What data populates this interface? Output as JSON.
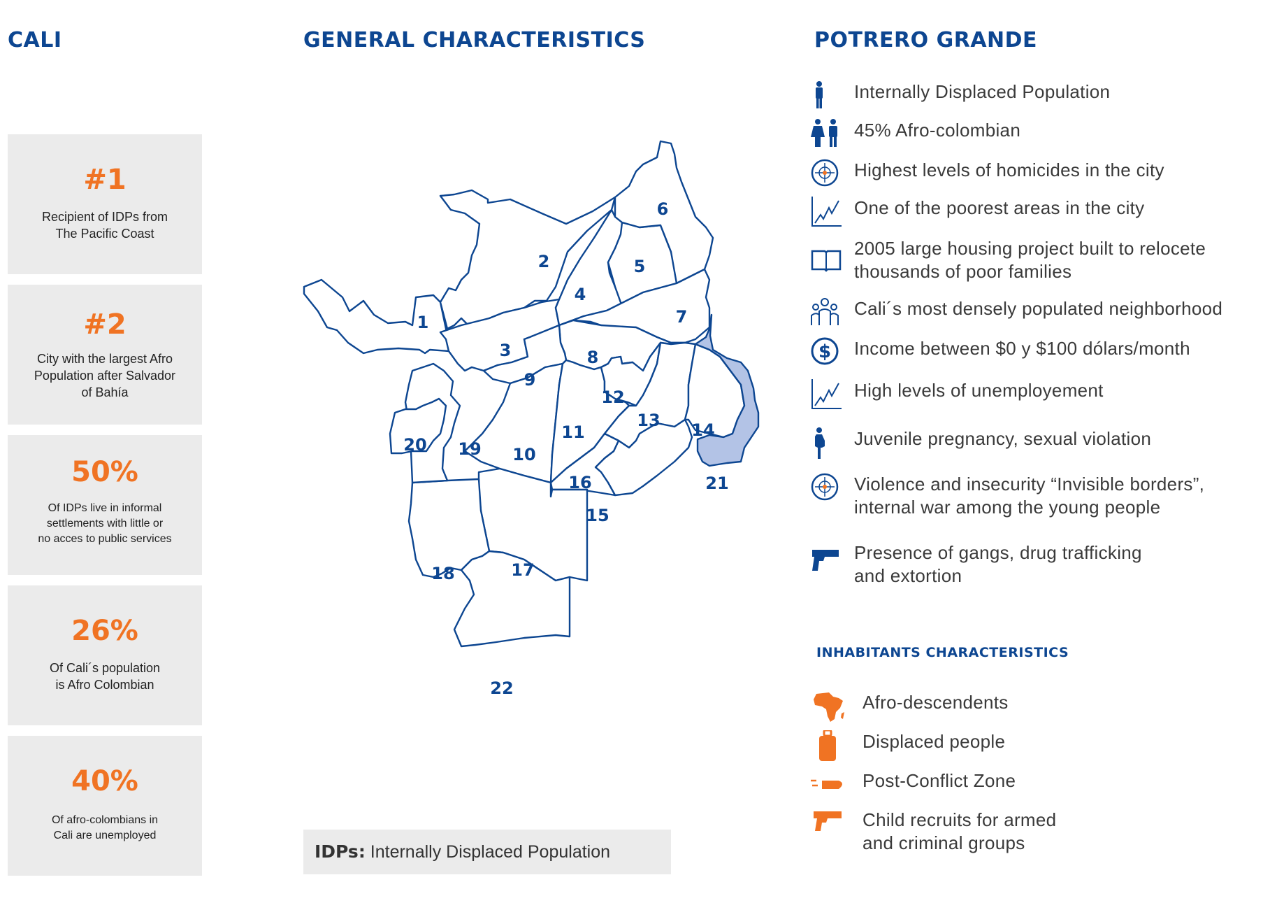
{
  "headers": {
    "left": "CALI",
    "center": "GENERAL CHARACTERISTICS",
    "right": "POTRERO GRANDE",
    "inhabitants": "INHABITANTS CHARACTERISTICS"
  },
  "stats": [
    {
      "value": "#1",
      "text": "Recipient of IDPs from\nThe Pacific Coast"
    },
    {
      "value": "#2",
      "text": "City with the largest Afro\nPopulation after Salvador\nof Bahía"
    },
    {
      "value": "50%",
      "text": "Of IDPs live in informal\nsettlements with little or\nno acces to public services"
    },
    {
      "value": "26%",
      "text": "Of Cali´s population\nis Afro Colombian"
    },
    {
      "value": "40%",
      "text": "Of afro-colombians in\nCali are unemployed"
    }
  ],
  "map": {
    "zones": [
      "1",
      "2",
      "3",
      "4",
      "5",
      "6",
      "7",
      "8",
      "9",
      "10",
      "11",
      "12",
      "13",
      "14",
      "15",
      "16",
      "17",
      "18",
      "19",
      "20",
      "21",
      "22"
    ],
    "highlighted_zone": "21",
    "colors": {
      "stroke": "#0d4691",
      "fill": "#ffffff",
      "highlight": "#b3c3e6"
    }
  },
  "legend": {
    "abbr": "IDPs:",
    "text": " Internally Displaced Population"
  },
  "characteristics": [
    {
      "icon": "person-icon",
      "text": "Internally Displaced Population"
    },
    {
      "icon": "couple-icon",
      "text": "45% Afro-colombian"
    },
    {
      "icon": "crosshair-icon",
      "text": "Highest levels of homicides in the city"
    },
    {
      "icon": "line-chart-icon",
      "text": "One of the poorest areas in the city"
    },
    {
      "icon": "book-icon",
      "text": "2005 large housing project built to relocete\nthousands of poor families"
    },
    {
      "icon": "group-icon",
      "text": "Cali´s most densely populated neighborhood"
    },
    {
      "icon": "dollar-icon",
      "text": "Income between $0 y $100 dólars/month"
    },
    {
      "icon": "line-chart-icon",
      "text": "High levels of unemployement"
    },
    {
      "icon": "pregnant-icon",
      "text": "Juvenile pregnancy, sexual violation"
    },
    {
      "icon": "crosshair-icon",
      "text": "Violence and insecurity “Invisible borders”,\ninternal war among the young people"
    },
    {
      "icon": "gun-icon",
      "text": "Presence of gangs, drug trafficking\nand extortion"
    }
  ],
  "inhabitants": [
    {
      "icon": "africa-icon",
      "text": "Afro-descendents"
    },
    {
      "icon": "luggage-icon",
      "text": "Displaced people"
    },
    {
      "icon": "bullet-icon",
      "text": "Post-Conflict Zone"
    },
    {
      "icon": "gun-icon",
      "text": "Child recruits for armed\nand criminal groups"
    }
  ],
  "colors": {
    "blue": "#0d4691",
    "orange": "#f07323",
    "card_bg": "#ebebeb"
  }
}
